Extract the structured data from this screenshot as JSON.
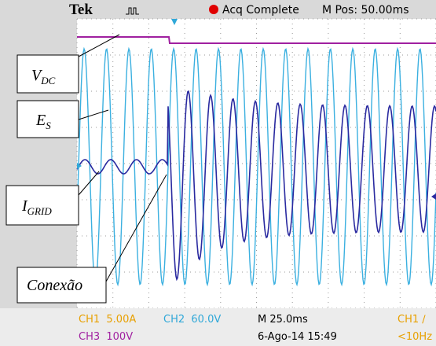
{
  "header": {
    "brand": "Tek",
    "status": "Acq Complete",
    "position": "M Pos: 50.00ms"
  },
  "footer": {
    "ch1": "CH1  5.00A",
    "ch2": "CH2  60.0V",
    "timebase": "M 25.0ms",
    "trigger": "CH1 ∕",
    "ch3": "CH3  100V",
    "date": "6-Ago-14 15:49",
    "frequency": "<10Hz"
  },
  "labels": [
    {
      "text": "V",
      "sub": "DC"
    },
    {
      "text": "E",
      "sub": "S"
    },
    {
      "text": "I",
      "sub": "GRID"
    },
    {
      "text": "Conexão"
    }
  ]
}
